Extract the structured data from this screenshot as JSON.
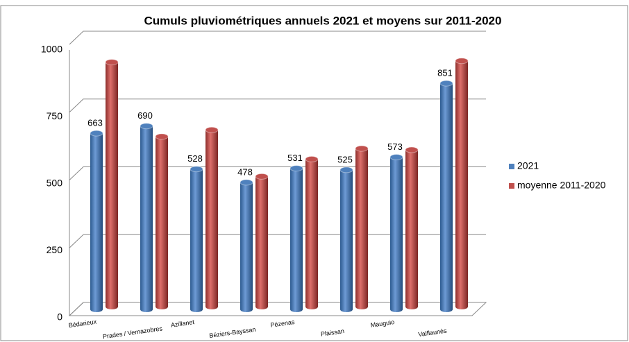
{
  "chart_data": {
    "type": "bar",
    "title": "Cumuls pluviométriques annuels 2021 et moyens sur 2011-2020",
    "categories": [
      "Bédarieux",
      "Prades / Vernazobres",
      "Azillanet",
      "Béziers-Bayssan",
      "Pézenas",
      "Plaissan",
      "Mauguio",
      "Valflaunès"
    ],
    "series": [
      {
        "name": "2021",
        "color": "#4f81bd",
        "values": [
          663,
          690,
          528,
          478,
          531,
          525,
          573,
          851
        ]
      },
      {
        "name": "moyenne 2011-2020",
        "color": "#c0504d",
        "values": [
          920,
          640,
          665,
          490,
          555,
          595,
          590,
          925
        ]
      }
    ],
    "ylim": [
      0,
      1000
    ],
    "yticks": [
      0,
      250,
      500,
      750,
      1000
    ],
    "grid": true,
    "legend": "right"
  }
}
